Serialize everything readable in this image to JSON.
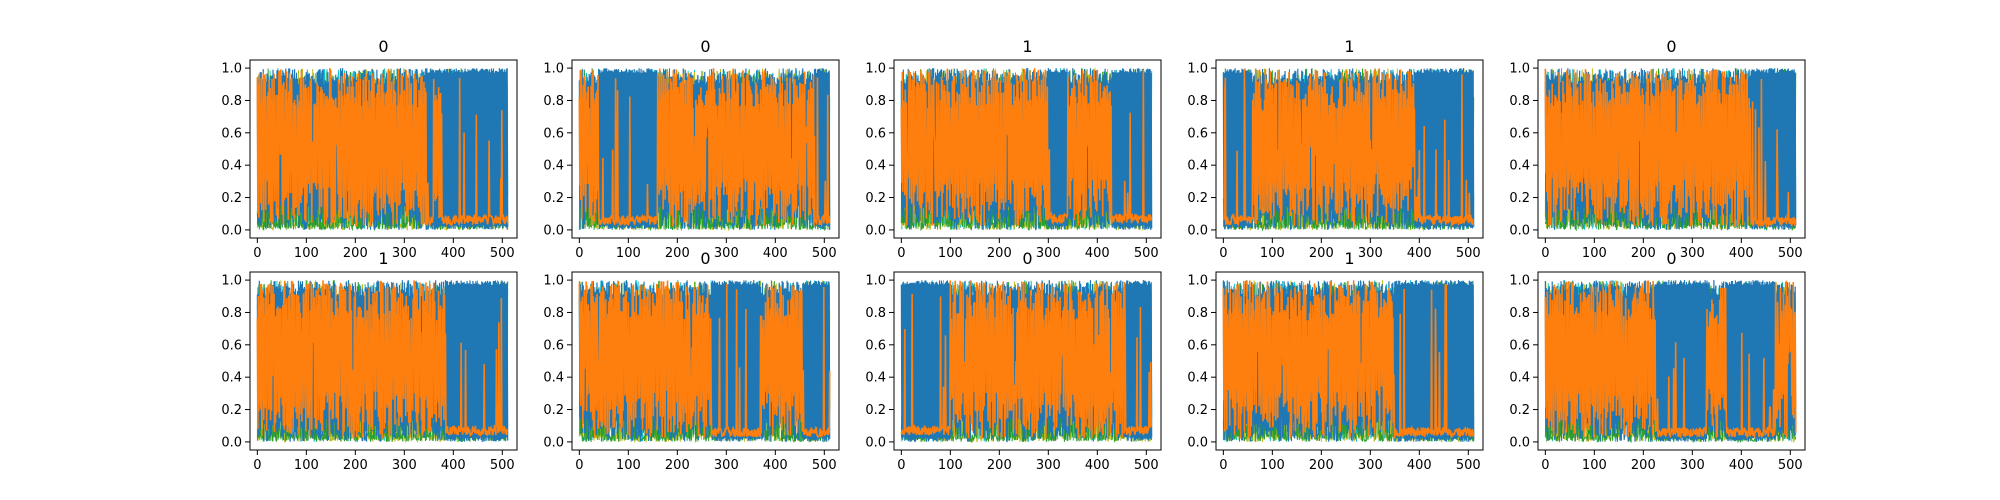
{
  "figure": {
    "grid_rows": 2,
    "grid_cols": 5,
    "background": "#ffffff"
  },
  "chart_data": [
    {
      "type": "line",
      "title": "0",
      "xlim": [
        -15,
        530
      ],
      "ylim": [
        -0.05,
        1.05
      ],
      "xticks": [
        0,
        100,
        200,
        300,
        400,
        500
      ],
      "xtick_labels": [
        "0",
        "100",
        "200",
        "300",
        "400",
        "500"
      ],
      "yticks": [
        0.0,
        0.2,
        0.4,
        0.6,
        0.8,
        1.0
      ],
      "ytick_labels": [
        "0.0",
        "0.2",
        "0.4",
        "0.6",
        "0.8",
        "1.0"
      ],
      "n_points": 512,
      "grid": false,
      "orange_segments": [
        [
          0,
          345
        ],
        [
          360,
          375
        ]
      ],
      "blue_segments": [
        [
          345,
          512
        ]
      ],
      "tail_level": 0.06
    },
    {
      "type": "line",
      "title": "0",
      "xlim": [
        -15,
        530
      ],
      "ylim": [
        -0.05,
        1.05
      ],
      "xticks": [
        0,
        100,
        200,
        300,
        400,
        500
      ],
      "xtick_labels": [
        "0",
        "100",
        "200",
        "300",
        "400",
        "500"
      ],
      "yticks": [
        0.0,
        0.2,
        0.4,
        0.6,
        0.8,
        1.0
      ],
      "ytick_labels": [
        "0.0",
        "0.2",
        "0.4",
        "0.6",
        "0.8",
        "1.0"
      ],
      "n_points": 512,
      "grid": false,
      "orange_segments": [
        [
          0,
          40
        ],
        [
          160,
          480
        ]
      ],
      "blue_segments": [
        [
          40,
          160
        ],
        [
          480,
          512
        ]
      ],
      "tail_level": 0.06
    },
    {
      "type": "line",
      "title": "1",
      "xlim": [
        -15,
        530
      ],
      "ylim": [
        -0.05,
        1.05
      ],
      "xticks": [
        0,
        100,
        200,
        300,
        400,
        500
      ],
      "xtick_labels": [
        "0",
        "100",
        "200",
        "300",
        "400",
        "500"
      ],
      "yticks": [
        0.0,
        0.2,
        0.4,
        0.6,
        0.8,
        1.0
      ],
      "ytick_labels": [
        "0.0",
        "0.2",
        "0.4",
        "0.6",
        "0.8",
        "1.0"
      ],
      "n_points": 512,
      "grid": false,
      "orange_segments": [
        [
          0,
          300
        ],
        [
          340,
          430
        ]
      ],
      "blue_segments": [
        [
          300,
          340
        ],
        [
          430,
          512
        ]
      ],
      "tail_level": 0.07
    },
    {
      "type": "line",
      "title": "1",
      "xlim": [
        -15,
        530
      ],
      "ylim": [
        -0.05,
        1.05
      ],
      "xticks": [
        0,
        100,
        200,
        300,
        400,
        500
      ],
      "xtick_labels": [
        "0",
        "100",
        "200",
        "300",
        "400",
        "500"
      ],
      "yticks": [
        0.0,
        0.2,
        0.4,
        0.6,
        0.8,
        1.0
      ],
      "ytick_labels": [
        "0.0",
        "0.2",
        "0.4",
        "0.6",
        "0.8",
        "1.0"
      ],
      "n_points": 512,
      "grid": false,
      "orange_segments": [
        [
          60,
          390
        ]
      ],
      "blue_segments": [
        [
          0,
          60
        ],
        [
          390,
          512
        ]
      ],
      "tail_level": 0.06
    },
    {
      "type": "line",
      "title": "0",
      "xlim": [
        -15,
        530
      ],
      "ylim": [
        -0.05,
        1.05
      ],
      "xticks": [
        0,
        100,
        200,
        300,
        400,
        500
      ],
      "xtick_labels": [
        "0",
        "100",
        "200",
        "300",
        "400",
        "500"
      ],
      "yticks": [
        0.0,
        0.2,
        0.4,
        0.6,
        0.8,
        1.0
      ],
      "ytick_labels": [
        "0.0",
        "0.2",
        "0.4",
        "0.6",
        "0.8",
        "1.0"
      ],
      "n_points": 512,
      "grid": false,
      "orange_segments": [
        [
          0,
          420
        ]
      ],
      "blue_segments": [
        [
          420,
          512
        ]
      ],
      "tail_level": 0.05
    },
    {
      "type": "line",
      "title": "1",
      "xlim": [
        -15,
        530
      ],
      "ylim": [
        -0.05,
        1.05
      ],
      "xticks": [
        0,
        100,
        200,
        300,
        400,
        500
      ],
      "xtick_labels": [
        "0",
        "100",
        "200",
        "300",
        "400",
        "500"
      ],
      "yticks": [
        0.0,
        0.2,
        0.4,
        0.6,
        0.8,
        1.0
      ],
      "ytick_labels": [
        "0.0",
        "0.2",
        "0.4",
        "0.6",
        "0.8",
        "1.0"
      ],
      "n_points": 512,
      "grid": false,
      "orange_segments": [
        [
          0,
          385
        ]
      ],
      "blue_segments": [
        [
          385,
          512
        ]
      ],
      "tail_level": 0.07
    },
    {
      "type": "line",
      "title": "0",
      "xlim": [
        -15,
        530
      ],
      "ylim": [
        -0.05,
        1.05
      ],
      "xticks": [
        0,
        100,
        200,
        300,
        400,
        500
      ],
      "xtick_labels": [
        "0",
        "100",
        "200",
        "300",
        "400",
        "500"
      ],
      "yticks": [
        0.0,
        0.2,
        0.4,
        0.6,
        0.8,
        1.0
      ],
      "ytick_labels": [
        "0.0",
        "0.2",
        "0.4",
        "0.6",
        "0.8",
        "1.0"
      ],
      "n_points": 512,
      "grid": false,
      "orange_segments": [
        [
          0,
          270
        ],
        [
          370,
          455
        ]
      ],
      "blue_segments": [
        [
          270,
          370
        ],
        [
          455,
          512
        ]
      ],
      "tail_level": 0.06
    },
    {
      "type": "line",
      "title": "0",
      "xlim": [
        -15,
        530
      ],
      "ylim": [
        -0.05,
        1.05
      ],
      "xticks": [
        0,
        100,
        200,
        300,
        400,
        500
      ],
      "xtick_labels": [
        "0",
        "100",
        "200",
        "300",
        "400",
        "500"
      ],
      "yticks": [
        0.0,
        0.2,
        0.4,
        0.6,
        0.8,
        1.0
      ],
      "ytick_labels": [
        "0.0",
        "0.2",
        "0.4",
        "0.6",
        "0.8",
        "1.0"
      ],
      "n_points": 512,
      "grid": false,
      "orange_segments": [
        [
          100,
          455
        ]
      ],
      "blue_segments": [
        [
          0,
          100
        ],
        [
          455,
          512
        ]
      ],
      "tail_level": 0.07
    },
    {
      "type": "line",
      "title": "1",
      "xlim": [
        -15,
        530
      ],
      "ylim": [
        -0.05,
        1.05
      ],
      "xticks": [
        0,
        100,
        200,
        300,
        400,
        500
      ],
      "xtick_labels": [
        "0",
        "100",
        "200",
        "300",
        "400",
        "500"
      ],
      "yticks": [
        0.0,
        0.2,
        0.4,
        0.6,
        0.8,
        1.0
      ],
      "ytick_labels": [
        "0.0",
        "0.2",
        "0.4",
        "0.6",
        "0.8",
        "1.0"
      ],
      "n_points": 512,
      "grid": false,
      "orange_segments": [
        [
          0,
          350
        ]
      ],
      "blue_segments": [
        [
          350,
          512
        ]
      ],
      "tail_level": 0.06
    },
    {
      "type": "line",
      "title": "0",
      "xlim": [
        -15,
        530
      ],
      "ylim": [
        -0.05,
        1.05
      ],
      "xticks": [
        0,
        100,
        200,
        300,
        400,
        500
      ],
      "xtick_labels": [
        "0",
        "100",
        "200",
        "300",
        "400",
        "500"
      ],
      "yticks": [
        0.0,
        0.2,
        0.4,
        0.6,
        0.8,
        1.0
      ],
      "ytick_labels": [
        "0.0",
        "0.2",
        "0.4",
        "0.6",
        "0.8",
        "1.0"
      ],
      "n_points": 512,
      "grid": false,
      "orange_segments": [
        [
          0,
          225
        ],
        [
          330,
          370
        ],
        [
          470,
          512
        ]
      ],
      "blue_segments": [
        [
          225,
          330
        ],
        [
          370,
          470
        ]
      ],
      "tail_level": 0.06
    }
  ],
  "series_colors": {
    "blue": "#1f77b4",
    "orange": "#ff7f0e",
    "cyan": "#17becf",
    "olive": "#bcbd22",
    "green": "#2ca02c",
    "red": "#d62728"
  }
}
